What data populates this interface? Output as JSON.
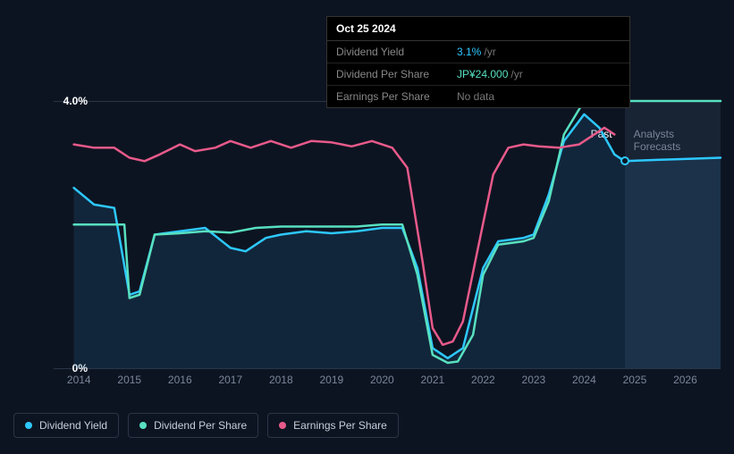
{
  "tooltip": {
    "date": "Oct 25 2024",
    "rows": [
      {
        "label": "Dividend Yield",
        "value": "3.1%",
        "unit": "/yr",
        "color": "blue"
      },
      {
        "label": "Dividend Per Share",
        "value": "JP¥24.000",
        "unit": "/yr",
        "color": "green"
      },
      {
        "label": "Earnings Per Share",
        "value": "No data",
        "unit": "",
        "color": "nodata"
      }
    ]
  },
  "chart": {
    "type": "line",
    "background_color": "#0d1421",
    "grid_color": "#2a3548",
    "y_axis": {
      "max_label": "4.0%",
      "min_label": "0%",
      "ylim": [
        0,
        4.0
      ],
      "label_color": "#ffffff",
      "label_fontsize": 12
    },
    "x_axis": {
      "ticks": [
        "2014",
        "2015",
        "2016",
        "2017",
        "2018",
        "2019",
        "2020",
        "2021",
        "2022",
        "2023",
        "2024",
        "2025",
        "2026"
      ],
      "label_color": "#7a8699",
      "label_fontsize": 12,
      "domain": [
        2013.5,
        2026.7
      ]
    },
    "forecast": {
      "start_year": 2024.8,
      "past_label": "Past",
      "forecast_label": "Analysts Forecasts",
      "bg_color": "rgba(60,80,110,0.25)"
    },
    "markers": {
      "x_year": 2024.8,
      "teal_y": 4.0,
      "blue_y": 3.1
    },
    "series": [
      {
        "name": "Dividend Yield",
        "color": "#2dc8ff",
        "width": 2.5,
        "points": [
          [
            2013.9,
            2.7
          ],
          [
            2014.3,
            2.45
          ],
          [
            2014.7,
            2.4
          ],
          [
            2015.0,
            1.1
          ],
          [
            2015.2,
            1.15
          ],
          [
            2015.5,
            2.0
          ],
          [
            2016.0,
            2.05
          ],
          [
            2016.5,
            2.1
          ],
          [
            2017.0,
            1.8
          ],
          [
            2017.3,
            1.75
          ],
          [
            2017.7,
            1.95
          ],
          [
            2018.0,
            2.0
          ],
          [
            2018.5,
            2.05
          ],
          [
            2019.0,
            2.02
          ],
          [
            2019.5,
            2.05
          ],
          [
            2020.0,
            2.1
          ],
          [
            2020.4,
            2.1
          ],
          [
            2020.7,
            1.5
          ],
          [
            2021.0,
            0.3
          ],
          [
            2021.3,
            0.15
          ],
          [
            2021.6,
            0.3
          ],
          [
            2022.0,
            1.5
          ],
          [
            2022.3,
            1.9
          ],
          [
            2022.8,
            1.95
          ],
          [
            2023.0,
            2.0
          ],
          [
            2023.3,
            2.6
          ],
          [
            2023.6,
            3.4
          ],
          [
            2024.0,
            3.8
          ],
          [
            2024.3,
            3.6
          ],
          [
            2024.6,
            3.2
          ],
          [
            2024.8,
            3.1
          ],
          [
            2025.5,
            3.12
          ],
          [
            2026.7,
            3.15
          ]
        ]
      },
      {
        "name": "Dividend Per Share",
        "color": "#58e0c0",
        "width": 2.5,
        "points": [
          [
            2013.9,
            2.15
          ],
          [
            2014.5,
            2.15
          ],
          [
            2014.9,
            2.15
          ],
          [
            2015.0,
            1.05
          ],
          [
            2015.2,
            1.1
          ],
          [
            2015.5,
            2.0
          ],
          [
            2016.0,
            2.02
          ],
          [
            2016.5,
            2.05
          ],
          [
            2017.0,
            2.03
          ],
          [
            2017.5,
            2.1
          ],
          [
            2018.0,
            2.12
          ],
          [
            2018.5,
            2.12
          ],
          [
            2019.0,
            2.12
          ],
          [
            2019.5,
            2.12
          ],
          [
            2020.0,
            2.15
          ],
          [
            2020.4,
            2.15
          ],
          [
            2020.7,
            1.4
          ],
          [
            2021.0,
            0.2
          ],
          [
            2021.3,
            0.08
          ],
          [
            2021.5,
            0.1
          ],
          [
            2021.8,
            0.5
          ],
          [
            2022.0,
            1.4
          ],
          [
            2022.3,
            1.85
          ],
          [
            2022.8,
            1.9
          ],
          [
            2023.0,
            1.95
          ],
          [
            2023.3,
            2.5
          ],
          [
            2023.6,
            3.5
          ],
          [
            2024.0,
            4.0
          ],
          [
            2024.5,
            4.0
          ],
          [
            2024.8,
            4.0
          ],
          [
            2025.5,
            4.0
          ],
          [
            2026.7,
            4.0
          ]
        ]
      },
      {
        "name": "Earnings Per Share",
        "color": "#e85a8a",
        "width": 2.5,
        "points": [
          [
            2013.9,
            3.35
          ],
          [
            2014.3,
            3.3
          ],
          [
            2014.7,
            3.3
          ],
          [
            2015.0,
            3.15
          ],
          [
            2015.3,
            3.1
          ],
          [
            2015.6,
            3.2
          ],
          [
            2016.0,
            3.35
          ],
          [
            2016.3,
            3.25
          ],
          [
            2016.7,
            3.3
          ],
          [
            2017.0,
            3.4
          ],
          [
            2017.4,
            3.3
          ],
          [
            2017.8,
            3.4
          ],
          [
            2018.2,
            3.3
          ],
          [
            2018.6,
            3.4
          ],
          [
            2019.0,
            3.38
          ],
          [
            2019.4,
            3.32
          ],
          [
            2019.8,
            3.4
          ],
          [
            2020.2,
            3.3
          ],
          [
            2020.5,
            3.0
          ],
          [
            2020.8,
            1.6
          ],
          [
            2021.0,
            0.6
          ],
          [
            2021.2,
            0.35
          ],
          [
            2021.4,
            0.4
          ],
          [
            2021.6,
            0.7
          ],
          [
            2021.9,
            1.8
          ],
          [
            2022.2,
            2.9
          ],
          [
            2022.5,
            3.3
          ],
          [
            2022.8,
            3.35
          ],
          [
            2023.1,
            3.32
          ],
          [
            2023.5,
            3.3
          ],
          [
            2023.9,
            3.35
          ],
          [
            2024.2,
            3.5
          ],
          [
            2024.4,
            3.6
          ],
          [
            2024.6,
            3.5
          ]
        ]
      }
    ],
    "area_fill": {
      "from_series": 0,
      "color": "rgba(45,120,180,0.18)"
    }
  },
  "legend": {
    "items": [
      {
        "label": "Dividend Yield",
        "color": "#2dc8ff"
      },
      {
        "label": "Dividend Per Share",
        "color": "#58e0c0"
      },
      {
        "label": "Earnings Per Share",
        "color": "#e85a8a"
      }
    ],
    "border_color": "#2a3548",
    "text_color": "#c5cedd"
  }
}
